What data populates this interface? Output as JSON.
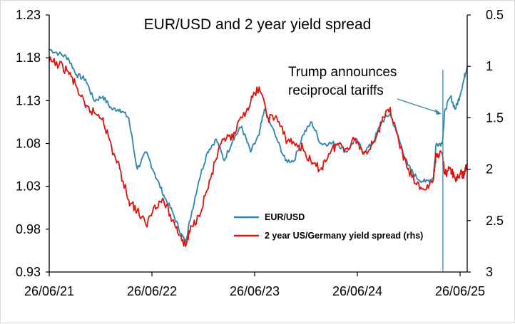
{
  "chart_data": {
    "type": "line",
    "title": "EUR/USD and 2 year yield spread",
    "xlabel": "",
    "ylabel": "",
    "x_tick_labels": [
      "26/06/21",
      "26/06/22",
      "26/06/23",
      "26/06/24",
      "26/06/25"
    ],
    "x_range": [
      "2021-06-26",
      "2025-06-26"
    ],
    "y_left": {
      "ylim": [
        0.93,
        1.23
      ],
      "tick_labels": [
        "1.23",
        "1.18",
        "1.13",
        "1.08",
        "1.03",
        "0.98",
        "0.93"
      ]
    },
    "y_right": {
      "ylim": [
        0.5,
        3
      ],
      "inverted": true,
      "tick_labels": [
        "0.5",
        "1",
        "1.5",
        "2",
        "2.5",
        "3"
      ]
    },
    "legend_position": "lower-right",
    "grid": false,
    "annotation": {
      "text_line1": "Trump announces",
      "text_line2": "reciprocal tariffs",
      "date": "2025-04-02",
      "color": "#2E86AB"
    },
    "series": [
      {
        "name": "EUR/USD",
        "axis": "left",
        "color": "#2E86AB",
        "points": [
          [
            "2021-06-26",
            1.19
          ],
          [
            "2021-07-31",
            1.185
          ],
          [
            "2021-08-31",
            1.18
          ],
          [
            "2021-09-30",
            1.16
          ],
          [
            "2021-10-31",
            1.155
          ],
          [
            "2021-11-30",
            1.13
          ],
          [
            "2021-12-31",
            1.135
          ],
          [
            "2022-01-31",
            1.12
          ],
          [
            "2022-02-28",
            1.12
          ],
          [
            "2022-03-31",
            1.11
          ],
          [
            "2022-04-30",
            1.05
          ],
          [
            "2022-05-31",
            1.07
          ],
          [
            "2022-06-30",
            1.045
          ],
          [
            "2022-07-31",
            1.02
          ],
          [
            "2022-08-31",
            1.0
          ],
          [
            "2022-09-30",
            0.975
          ],
          [
            "2022-10-15",
            0.965
          ],
          [
            "2022-10-31",
            0.99
          ],
          [
            "2022-11-30",
            1.035
          ],
          [
            "2022-12-31",
            1.07
          ],
          [
            "2023-01-31",
            1.085
          ],
          [
            "2023-02-28",
            1.06
          ],
          [
            "2023-03-31",
            1.085
          ],
          [
            "2023-04-30",
            1.1
          ],
          [
            "2023-05-31",
            1.07
          ],
          [
            "2023-06-30",
            1.09
          ],
          [
            "2023-07-18",
            1.12
          ],
          [
            "2023-08-31",
            1.085
          ],
          [
            "2023-09-30",
            1.06
          ],
          [
            "2023-10-31",
            1.06
          ],
          [
            "2023-11-30",
            1.09
          ],
          [
            "2023-12-31",
            1.105
          ],
          [
            "2024-01-31",
            1.08
          ],
          [
            "2024-02-28",
            1.08
          ],
          [
            "2024-03-31",
            1.08
          ],
          [
            "2024-04-30",
            1.07
          ],
          [
            "2024-05-31",
            1.085
          ],
          [
            "2024-06-30",
            1.07
          ],
          [
            "2024-07-31",
            1.08
          ],
          [
            "2024-08-31",
            1.105
          ],
          [
            "2024-09-30",
            1.115
          ],
          [
            "2024-10-31",
            1.085
          ],
          [
            "2024-11-30",
            1.055
          ],
          [
            "2024-12-31",
            1.04
          ],
          [
            "2025-01-31",
            1.035
          ],
          [
            "2025-02-28",
            1.04
          ],
          [
            "2025-03-10",
            1.08
          ],
          [
            "2025-03-31",
            1.08
          ],
          [
            "2025-04-10",
            1.12
          ],
          [
            "2025-04-30",
            1.135
          ],
          [
            "2025-05-15",
            1.12
          ],
          [
            "2025-05-31",
            1.135
          ],
          [
            "2025-06-15",
            1.155
          ],
          [
            "2025-06-26",
            1.17
          ]
        ]
      },
      {
        "name": "2 year US/Germany yield spread (rhs)",
        "axis": "right",
        "color": "#E3120B",
        "points": [
          [
            "2021-06-26",
            0.95
          ],
          [
            "2021-07-31",
            0.98
          ],
          [
            "2021-08-31",
            1.05
          ],
          [
            "2021-09-30",
            1.2
          ],
          [
            "2021-10-31",
            1.4
          ],
          [
            "2021-11-30",
            1.45
          ],
          [
            "2021-12-31",
            1.5
          ],
          [
            "2022-01-31",
            1.8
          ],
          [
            "2022-02-28",
            2.0
          ],
          [
            "2022-03-31",
            2.3
          ],
          [
            "2022-04-30",
            2.4
          ],
          [
            "2022-05-31",
            2.55
          ],
          [
            "2022-06-30",
            2.35
          ],
          [
            "2022-07-31",
            2.3
          ],
          [
            "2022-08-31",
            2.5
          ],
          [
            "2022-09-30",
            2.65
          ],
          [
            "2022-10-15",
            2.75
          ],
          [
            "2022-10-31",
            2.6
          ],
          [
            "2022-11-30",
            2.45
          ],
          [
            "2022-12-31",
            2.2
          ],
          [
            "2023-01-31",
            1.9
          ],
          [
            "2023-02-28",
            1.7
          ],
          [
            "2023-03-31",
            1.7
          ],
          [
            "2023-04-30",
            1.5
          ],
          [
            "2023-05-31",
            1.35
          ],
          [
            "2023-06-30",
            1.2
          ],
          [
            "2023-07-31",
            1.5
          ],
          [
            "2023-08-31",
            1.5
          ],
          [
            "2023-09-30",
            1.7
          ],
          [
            "2023-10-31",
            1.75
          ],
          [
            "2023-11-30",
            1.8
          ],
          [
            "2023-12-31",
            1.95
          ],
          [
            "2024-01-31",
            2.0
          ],
          [
            "2024-02-28",
            1.85
          ],
          [
            "2024-03-31",
            1.75
          ],
          [
            "2024-04-30",
            1.8
          ],
          [
            "2024-05-31",
            1.7
          ],
          [
            "2024-06-30",
            1.85
          ],
          [
            "2024-07-31",
            1.75
          ],
          [
            "2024-08-31",
            1.55
          ],
          [
            "2024-09-30",
            1.4
          ],
          [
            "2024-10-31",
            1.75
          ],
          [
            "2024-11-30",
            2.0
          ],
          [
            "2024-12-31",
            2.15
          ],
          [
            "2025-01-31",
            2.2
          ],
          [
            "2025-02-28",
            2.1
          ],
          [
            "2025-03-10",
            1.85
          ],
          [
            "2025-03-31",
            1.85
          ],
          [
            "2025-04-10",
            2.05
          ],
          [
            "2025-04-30",
            2.0
          ],
          [
            "2025-05-15",
            2.1
          ],
          [
            "2025-05-31",
            2.05
          ],
          [
            "2025-06-15",
            2.05
          ],
          [
            "2025-06-26",
            1.95
          ]
        ]
      }
    ]
  }
}
